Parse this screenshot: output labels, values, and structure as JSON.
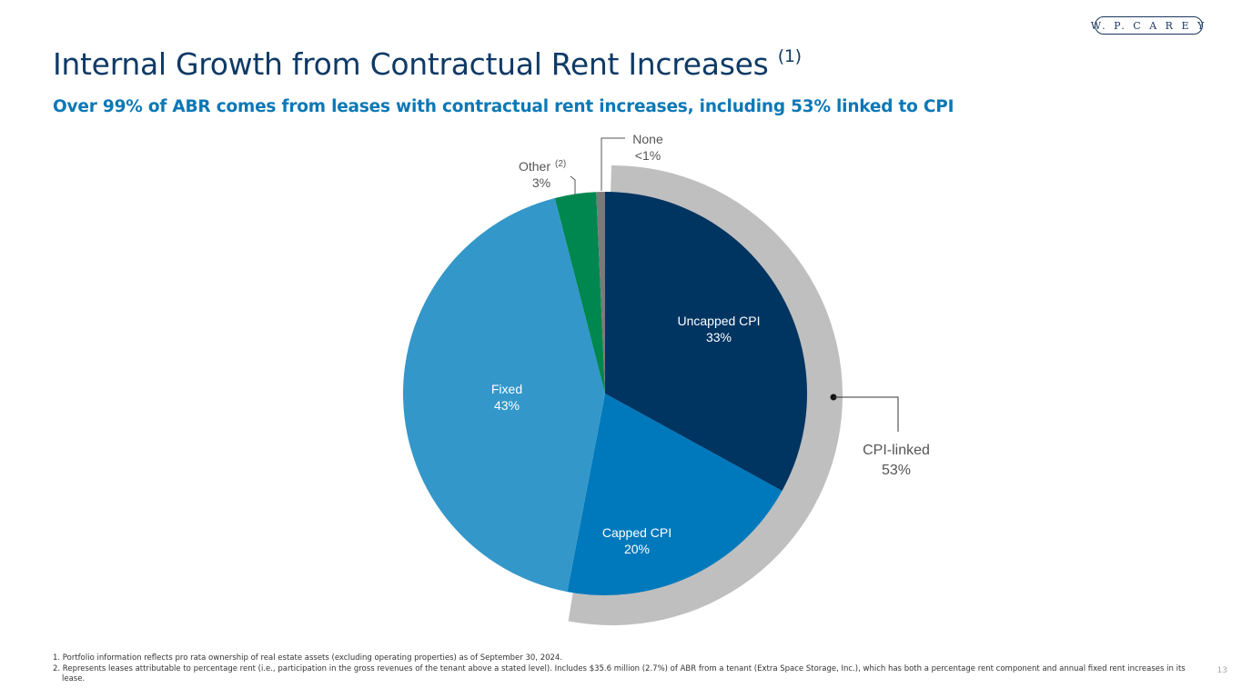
{
  "logo": {
    "text": "W. P. C A R E Y"
  },
  "title": "Internal Growth from Contractual Rent Increases",
  "title_note": "(1)",
  "subtitle": "Over 99% of ABR comes from leases with contractual rent increases, including 53% linked to CPI",
  "chart_data": {
    "type": "pie",
    "title": "",
    "slices": [
      {
        "label": "Uncapped CPI",
        "value_label": "33%",
        "value": 33,
        "color": "#003461"
      },
      {
        "label": "Capped CPI",
        "value_label": "20%",
        "value": 20,
        "color": "#0079bc"
      },
      {
        "label": "Fixed",
        "value_label": "43%",
        "value": 43,
        "color": "#3397ca"
      },
      {
        "label": "Other",
        "label_note": "(2)",
        "value_label": "3%",
        "value": 3.3,
        "color": "#00874f"
      },
      {
        "label": "None",
        "value_label": "<1%",
        "value": 0.7,
        "color": "#7a7a7a"
      }
    ],
    "group": {
      "label": "CPI-linked",
      "value_label": "53%",
      "value": 53,
      "members": [
        "Uncapped CPI",
        "Capped CPI"
      ],
      "color": "#bfbfbf"
    }
  },
  "footnotes": [
    "1. Portfolio information reflects pro rata ownership of real estate assets (excluding operating properties) as of September 30, 2024.",
    "2. Represents leases attributable to percentage rent (i.e., participation in the gross revenues of the tenant above a stated level). Includes $35.6 million (2.7%) of ABR from a tenant (Extra Space Storage, Inc.), which has both a percentage rent component and annual fixed rent increases in its lease."
  ],
  "page_number": "13"
}
